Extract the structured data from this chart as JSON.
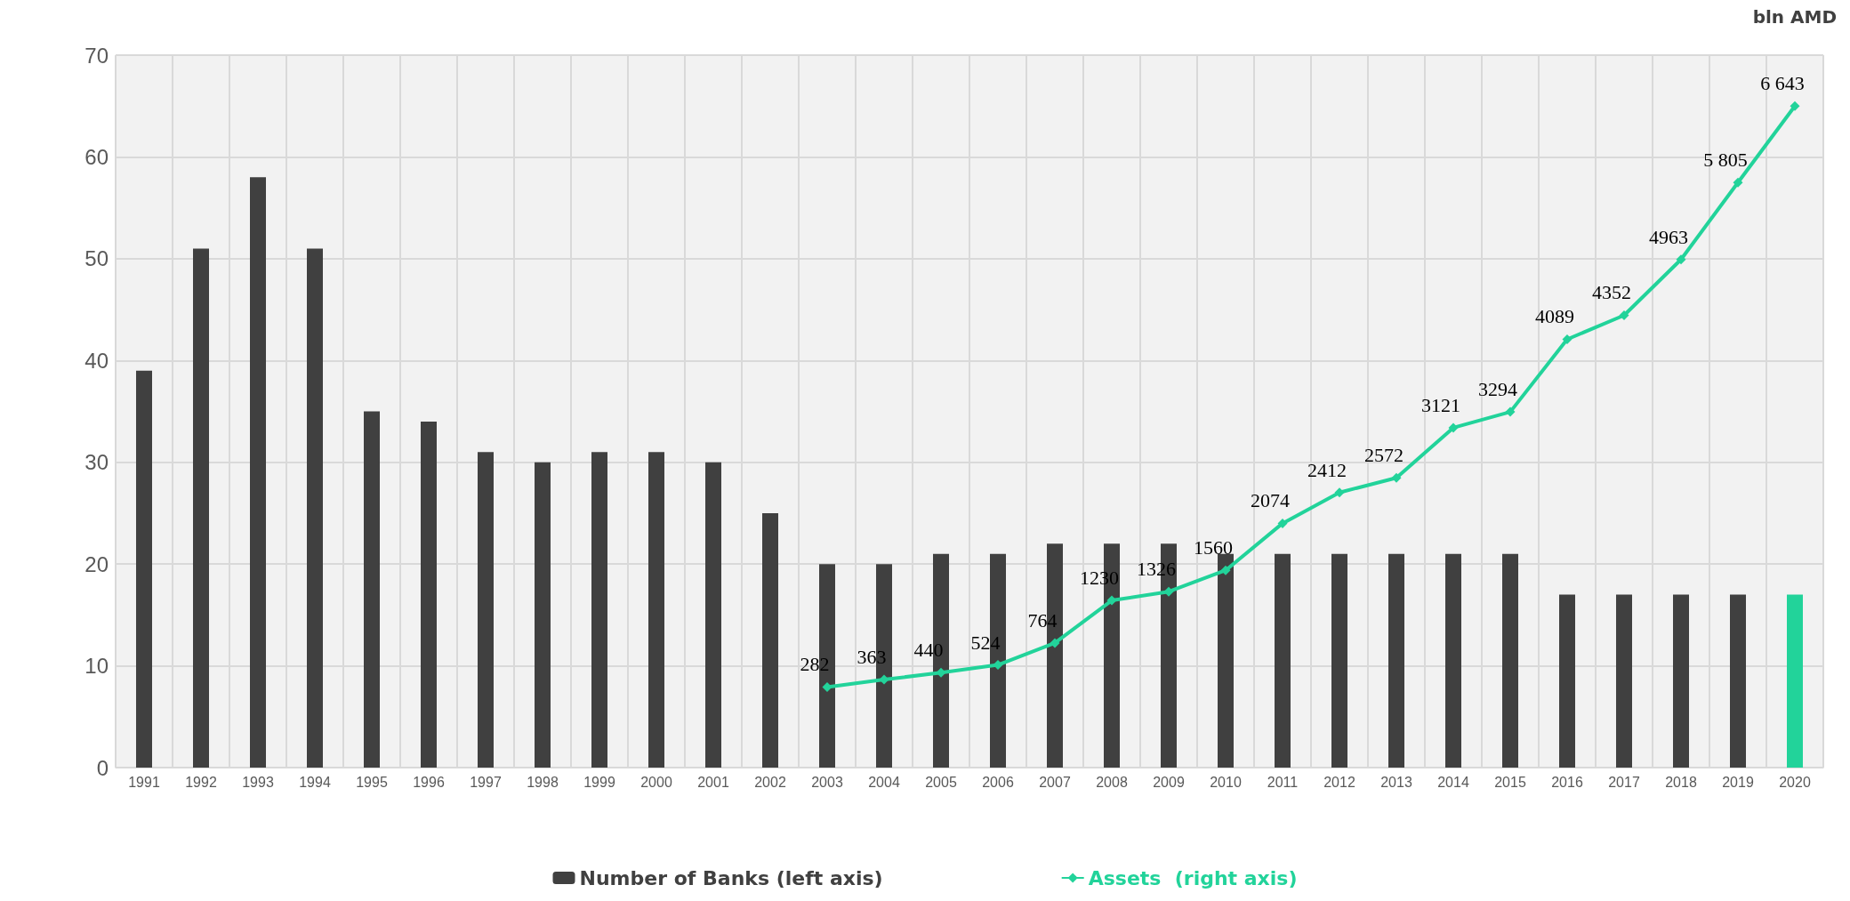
{
  "chart_data": {
    "type": "bar",
    "y2label": "bln AMD",
    "categories": [
      "1991",
      "1992",
      "1993",
      "1994",
      "1995",
      "1996",
      "1997",
      "1998",
      "1999",
      "2000",
      "2001",
      "2002",
      "2003",
      "2004",
      "2005",
      "2006",
      "2007",
      "2008",
      "2009",
      "2010",
      "2011",
      "2012",
      "2013",
      "2014",
      "2015",
      "2016",
      "2017",
      "2018",
      "2019",
      "2020"
    ],
    "series": [
      {
        "name": "Number of Banks (left axis)",
        "color": "#404040",
        "colors": [
          "#404040",
          "#404040",
          "#404040",
          "#404040",
          "#404040",
          "#404040",
          "#404040",
          "#404040",
          "#404040",
          "#404040",
          "#404040",
          "#404040",
          "#404040",
          "#404040",
          "#404040",
          "#404040",
          "#404040",
          "#404040",
          "#404040",
          "#404040",
          "#404040",
          "#404040",
          "#404040",
          "#404040",
          "#404040",
          "#404040",
          "#404040",
          "#404040",
          "#404040",
          "#22d39a"
        ],
        "values": [
          39,
          51,
          58,
          51,
          35,
          34,
          31,
          30,
          31,
          31,
          30,
          25,
          20,
          20,
          21,
          21,
          22,
          22,
          22,
          21,
          21,
          21,
          21,
          21,
          21,
          17,
          17,
          17,
          17,
          17
        ]
      },
      {
        "name": "Assets  (right axis)",
        "type": "line",
        "axis": "y2",
        "color": "#22d39a",
        "marker": "diamond",
        "values": [
          null,
          null,
          null,
          null,
          null,
          null,
          null,
          null,
          null,
          null,
          null,
          null,
          282,
          363,
          440,
          524,
          764,
          1230,
          1326,
          1560,
          2074,
          2412,
          2572,
          3121,
          3294,
          4089,
          4352,
          4963,
          5805,
          6643
        ],
        "value_labels": [
          null,
          null,
          null,
          null,
          null,
          null,
          null,
          null,
          null,
          null,
          null,
          null,
          "282",
          "363",
          "440",
          "524",
          "764",
          "1230",
          "1326",
          "1560",
          "2074",
          "2412",
          "2572",
          "3121",
          "3294",
          "4089",
          "4352",
          "4963",
          "5 805",
          "6 643"
        ]
      }
    ],
    "ylim": [
      0,
      70
    ],
    "yticks": [
      0,
      10,
      20,
      30,
      40,
      50,
      60,
      70
    ],
    "y2lim": [
      -600,
      7200
    ],
    "grid": true,
    "legend": "bottom"
  }
}
